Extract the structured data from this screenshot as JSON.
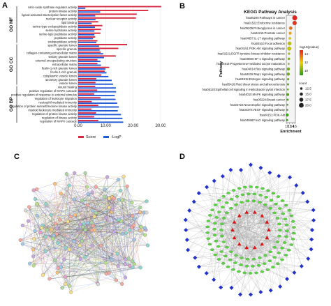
{
  "panel_labels": {
    "a": "A",
    "b": "B",
    "c": "C",
    "d": "D"
  },
  "chart_data": [
    {
      "type": "bar",
      "panel": "A",
      "orientation": "horizontal",
      "categories": [
        "nitric-oxide synthase regulator activity",
        "protein kinase activity",
        "ligand-activated transcription factor activity",
        "nuclear receptor activity",
        "lipid binding",
        "serine-type endopeptidase activity",
        "serine hydrolase activity",
        "serine-type peptidase activity",
        "peptidase activity",
        "endopeptidase activity",
        "specific granule lumen",
        "specific granule",
        "collagen-containing extracellular matrix",
        "tertiary granule lumen",
        "external encapsulating structure",
        "extracellular matrix",
        "ficolin-1-rich granule lumen",
        "ficolin-1-rich granule",
        "cytoplasmic vesicle lumen",
        "secretory granule lumen",
        "vesicle lumen",
        "wound healing",
        "positive regulation of MAPK cascade",
        "positive regulation of response to external stimulus",
        "regulation of leukocyte migration",
        "neutrophil mediated immunity",
        "regulation of protein serine/threonine kinase activity",
        "myeloid leukocyte mediated immunity",
        "regulation of protein kinase activity",
        "regulation of kinase activity",
        "regulation of MAPK cascade"
      ],
      "groups": [
        {
          "name": "GO MF",
          "start": 0,
          "end": 9
        },
        {
          "name": "GO CC",
          "start": 10,
          "end": 20
        },
        {
          "name": "GO BP",
          "start": 21,
          "end": 30
        }
      ],
      "series": [
        {
          "name": "Score",
          "color": "#d7263d",
          "values": [
            30.2,
            25.5,
            21.3,
            21.0,
            7.3,
            8.8,
            8.3,
            8.1,
            6.2,
            7.0,
            17.8,
            14.6,
            8.2,
            13.7,
            7.0,
            7.0,
            11.3,
            9.7,
            8.4,
            6.6,
            6.3,
            6.2,
            6.9,
            5.8,
            8.1,
            4.9,
            7.3,
            4.8,
            6.5,
            5.8,
            7.3
          ]
        },
        {
          "name": "-LogP",
          "color": "#1f5bd6",
          "values": [
            2.6,
            8.0,
            6.2,
            6.3,
            4.9,
            6.1,
            5.9,
            5.9,
            5.4,
            6.6,
            7.6,
            7.8,
            9.1,
            9.4,
            8.1,
            8.3,
            9.9,
            10.3,
            11.0,
            12.2,
            12.7,
            13.7,
            13.8,
            13.3,
            13.6,
            14.2,
            14.8,
            14.4,
            15.6,
            16.1,
            16.4
          ]
        }
      ],
      "xlim": [
        0,
        30
      ],
      "xticks": [
        "0.00",
        "10.00",
        "20.00",
        "30.00"
      ],
      "legend": [
        "Score",
        "-LogP"
      ],
      "legend_position": "bottom"
    },
    {
      "type": "scatter",
      "panel": "B",
      "title": "KEGG Pathway Analysis",
      "xlabel": "Enrichment",
      "ylabel": "Pathway",
      "xlim": [
        9.5,
        16.5
      ],
      "xticks": [
        "10",
        "12",
        "14",
        "16"
      ],
      "categories": [
        "hsa05200:Pathways in cancer",
        "hsa01522:Endocrine resistance",
        "hsa05205:Proteoglycans in cancer",
        "hsa04215:Prostate cancer",
        "hsa04657:IL-17 signaling pathway",
        "hsa04510:Focal adhesion",
        "hsa04151:PI3K-Akt signaling pathway",
        "hsa01521:EGFR tyrosine kinase inhibitor resistance",
        "hsa04066:HIF-1 signaling pathway",
        "hsa04914:Progesterone-mediated oocyte maturation",
        "hsa04014:Ras signaling pathway",
        "hsa04015:Rap1 signaling pathway",
        "hsa04915:Estrogen signaling pathway",
        "hsa05418:Fluid shear stress and atherosclerosis",
        "hsa05120:Epithelial cell signaling in Helicobacter pylori infection",
        "hsa04010:MAPK signaling pathway",
        "hsa05224:Breast cancer",
        "hsa04722:Neurotrophin signaling pathway",
        "hsa04370:VEGF signaling pathway",
        "hsa04151:PI3K-Akt",
        "hsa04068:FoxO signaling pathway"
      ],
      "x": [
        16.0,
        15.9,
        12.9,
        12.5,
        12.2,
        12.0,
        11.8,
        11.6,
        11.5,
        11.3,
        11.1,
        11.0,
        10.9,
        10.8,
        10.7,
        10.6,
        10.5,
        10.4,
        10.3,
        10.2,
        10.1
      ],
      "neglog10p": [
        19.5,
        19.0,
        17.2,
        15.6,
        14.2,
        13.3,
        13.5,
        12.8,
        12.1,
        11.9,
        11.5,
        11.3,
        11.0,
        10.9,
        10.9,
        10.6,
        10.5,
        10.4,
        10.3,
        10.2,
        10.1
      ],
      "count": [
        20,
        18,
        15,
        13,
        12,
        16,
        17,
        11,
        12,
        10,
        14,
        14,
        11,
        11,
        10,
        13,
        11,
        10,
        10,
        14,
        11
      ],
      "color_legend_title": "-log10(pvalue)",
      "color_scale": [
        "#1aa31a",
        "#f2d000",
        "#e82020"
      ],
      "color_ticks": [
        "14",
        "12",
        "10"
      ],
      "color_range": [
        9.5,
        19.5
      ],
      "size_legend_title": "count",
      "size_legend_values": [
        "12.5",
        "15.0",
        "17.5",
        "20.0"
      ]
    }
  ],
  "network_c": {
    "panel": "C",
    "node_colors": [
      "#f4a9a0",
      "#a8d8a0",
      "#9fc8e8",
      "#f6e08a",
      "#c8a8e0",
      "#f8c27a",
      "#8fd6d0",
      "#e89ec8",
      "#b7e08a",
      "#d9d9d9"
    ],
    "edge_colors": [
      "#5da55d",
      "#3c78d8",
      "#d0d040",
      "#222222",
      "#9a6fd0",
      "#e06060"
    ]
  },
  "network_d": {
    "panel": "D",
    "colors": {
      "outer": "#2233cc",
      "ring": "#5ad640",
      "core": "#dd1111",
      "edge": "#8a8a8a"
    }
  }
}
